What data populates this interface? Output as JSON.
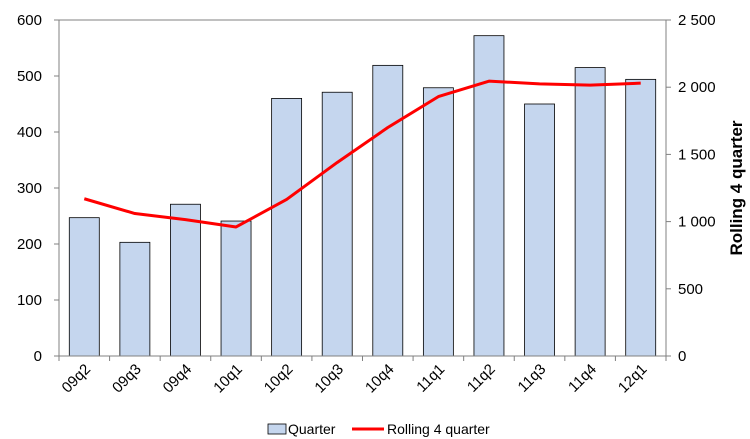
{
  "chart_data": {
    "type": "bar",
    "categories": [
      "09q2",
      "09q3",
      "09q4",
      "10q1",
      "10q2",
      "10q3",
      "10q4",
      "11q1",
      "11q2",
      "11q3",
      "11q4",
      "12q1"
    ],
    "series": [
      {
        "name": "Quarter",
        "type": "bar",
        "axis": "left",
        "values": [
          247,
          203,
          271,
          241,
          460,
          471,
          519,
          479,
          572,
          450,
          515,
          494
        ],
        "color": "#c5d6ee",
        "edge_color": "#000000"
      },
      {
        "name": "Rolling 4 quarter",
        "type": "line",
        "axis": "right",
        "values": [
          1170,
          1060,
          1015,
          960,
          1165,
          1440,
          1700,
          1930,
          2045,
          2025,
          2015,
          2030
        ],
        "color": "#ff0000"
      }
    ],
    "y_left": {
      "min": 0,
      "max": 600,
      "ticks": [
        "0",
        "100",
        "200",
        "300",
        "400",
        "500",
        "600"
      ],
      "tick_values": [
        0,
        100,
        200,
        300,
        400,
        500,
        600
      ]
    },
    "y_right": {
      "min": 0,
      "max": 2500,
      "label": "Rolling 4 quarter",
      "ticks": [
        "0",
        "500",
        "1 000",
        "1 500",
        "2 000",
        "2 500"
      ],
      "tick_values": [
        0,
        500,
        1000,
        1500,
        2000,
        2500
      ]
    },
    "legend": {
      "placement": "bottom-center",
      "items": [
        "Quarter",
        "Rolling 4 quarter"
      ]
    },
    "grid": false
  }
}
